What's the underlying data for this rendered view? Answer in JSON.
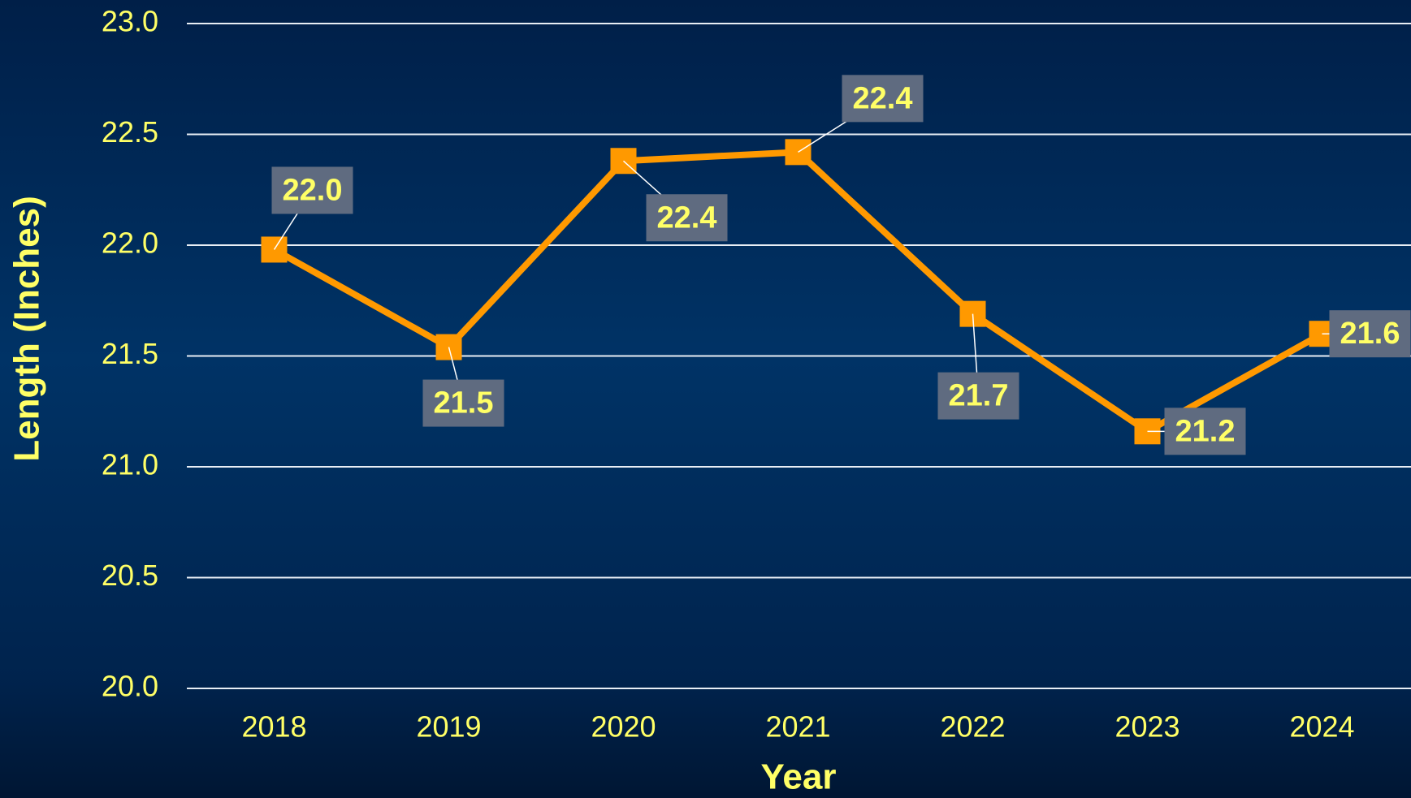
{
  "chart_data": {
    "type": "line",
    "x_label": "Year",
    "y_label": "Length (Inches)",
    "categories": [
      "2018",
      "2019",
      "2020",
      "2021",
      "2022",
      "2023",
      "2024"
    ],
    "series": [
      {
        "name": "Length",
        "color": "#ff9900",
        "values": [
          21.98,
          21.54,
          22.38,
          22.42,
          21.69,
          21.16,
          21.6
        ],
        "value_labels": [
          "22.0",
          "21.5",
          "22.4",
          "22.4",
          "21.7",
          "21.2",
          "21.6"
        ]
      }
    ],
    "ylim": [
      20,
      23
    ],
    "yticks": [
      {
        "value": 20,
        "label": "20.0"
      },
      {
        "value": 20.5,
        "label": "20.5"
      },
      {
        "value": 21,
        "label": "21.0"
      },
      {
        "value": 21.5,
        "label": "21.5"
      },
      {
        "value": 22,
        "label": "22.0"
      },
      {
        "value": 22.5,
        "label": "22.5"
      },
      {
        "value": 23,
        "label": "23.0"
      }
    ],
    "grid": true
  }
}
